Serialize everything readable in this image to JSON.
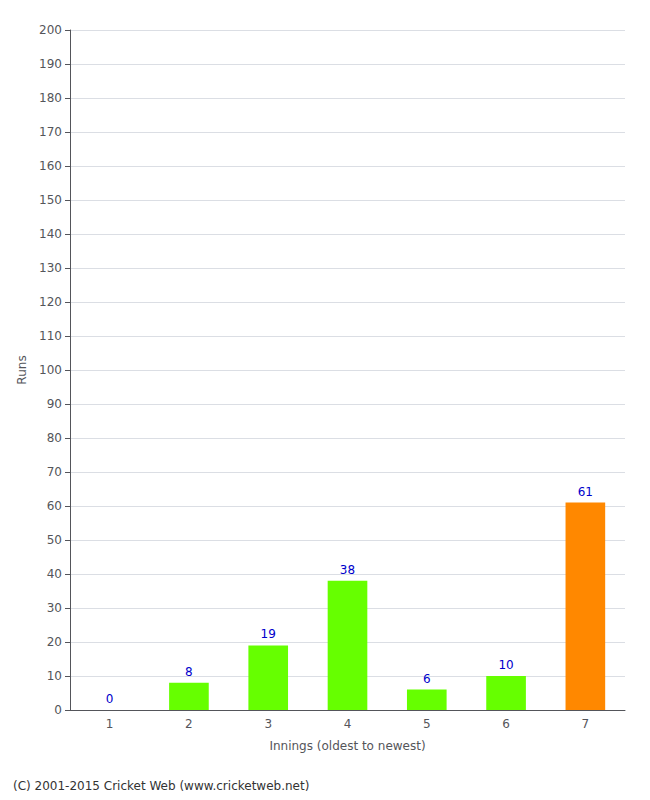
{
  "chart_data": {
    "type": "bar",
    "categories": [
      "1",
      "2",
      "3",
      "4",
      "5",
      "6",
      "7"
    ],
    "values": [
      0,
      8,
      19,
      38,
      6,
      10,
      61
    ],
    "colors": [
      "#66ff00",
      "#66ff00",
      "#66ff00",
      "#66ff00",
      "#66ff00",
      "#66ff00",
      "#ff8800"
    ],
    "xlabel": "Innings (oldest to newest)",
    "ylabel": "Runs",
    "ylim": [
      0,
      200
    ],
    "yticks": [
      0,
      10,
      20,
      30,
      40,
      50,
      60,
      70,
      80,
      90,
      100,
      110,
      120,
      130,
      140,
      150,
      160,
      170,
      180,
      190,
      200
    ],
    "grid": true,
    "data_labels": true,
    "annotations": [
      "(C) 2001-2015 Cricket Web (www.cricketweb.net)"
    ]
  }
}
